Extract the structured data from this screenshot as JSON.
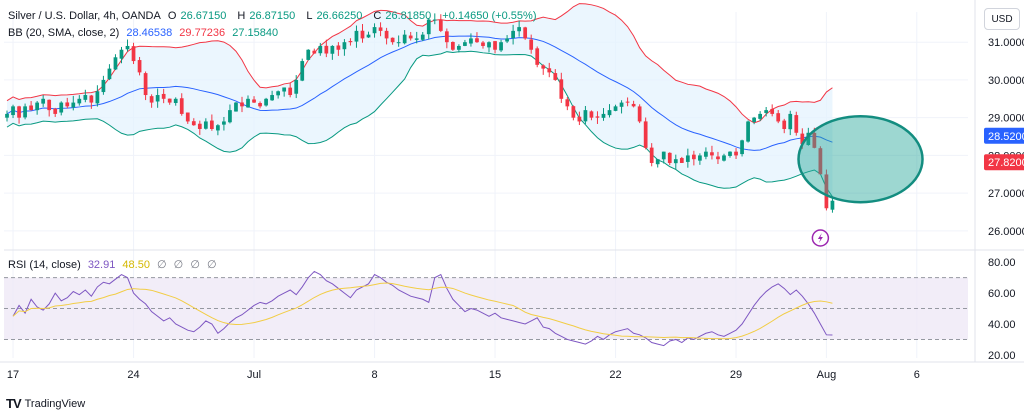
{
  "header": {
    "symbol": "Silver / U.S. Dollar, 4h, OANDA",
    "open_label": "O",
    "open": "26.67150",
    "high_label": "H",
    "high": "26.87150",
    "low_label": "L",
    "low": "26.66250",
    "close_label": "C",
    "close": "26.81850",
    "change": "+0.14650 (+0.55%)",
    "bb_label": "BB (20, SMA, close, 2)",
    "bb_basis": "28.46538",
    "bb_upper": "29.77236",
    "bb_lower": "27.15840",
    "rsi_label": "RSI (14, close)",
    "rsi_value": "32.91",
    "rsi_ma_value": "48.50",
    "rsi_extra": [
      "∅",
      "∅",
      "∅",
      "∅"
    ],
    "currency": "USD"
  },
  "footer": {
    "brand": "TradingView"
  },
  "colors": {
    "up": "#089981",
    "down": "#f23645",
    "basis": "#2962ff",
    "upper": "#f23645",
    "lower": "#089981",
    "band_fill": "#e3f2fd",
    "rsi": "#7e57c2",
    "rsi_ma": "#f2cd45",
    "rsi_band": "#ede7f6",
    "annotation": "#26a69a"
  },
  "chart_data": [
    {
      "type": "candlestick",
      "title": "Silver / U.S. Dollar, 4h, OANDA",
      "ylim": [
        25.6,
        31.8
      ],
      "price_ticks": [
        "31.0000",
        "30.0000",
        "29.0000",
        "28.0000",
        "27.0000",
        "26.0000"
      ],
      "price_tick_values": [
        31,
        30,
        29,
        28,
        27,
        26
      ],
      "price_labels": [
        {
          "text": "28.5200",
          "value": 28.52,
          "color": "#2962ff"
        },
        {
          "text": "27.8200",
          "value": 27.82,
          "color": "#f23645"
        }
      ],
      "x_labels": [
        "17",
        "24",
        "Jul",
        "8",
        "15",
        "22",
        "29",
        "Aug",
        "6"
      ],
      "x_label_bar_index": [
        1,
        21,
        41,
        61,
        81,
        101,
        121,
        136,
        151
      ],
      "close_series": [
        29.1,
        29.3,
        29.0,
        29.3,
        29.2,
        29.4,
        29.5,
        29.2,
        29.1,
        29.4,
        29.3,
        29.4,
        29.5,
        29.6,
        29.4,
        29.7,
        30.0,
        30.3,
        30.6,
        30.8,
        30.9,
        30.5,
        30.2,
        29.6,
        29.4,
        29.6,
        29.5,
        29.4,
        29.5,
        29.1,
        28.9,
        28.8,
        28.7,
        28.9,
        28.7,
        28.8,
        28.9,
        29.2,
        29.4,
        29.3,
        29.5,
        29.4,
        29.3,
        29.5,
        29.6,
        29.7,
        29.8,
        29.6,
        30.0,
        30.5,
        30.8,
        30.7,
        30.9,
        30.7,
        30.9,
        30.8,
        31.0,
        31.0,
        31.3,
        31.1,
        31.2,
        31.4,
        31.3,
        31.1,
        31.0,
        31.0,
        31.2,
        31.1,
        31.1,
        31.2,
        31.6,
        31.6,
        31.3,
        31.0,
        30.8,
        30.9,
        31.0,
        31.1,
        31.0,
        30.9,
        31.0,
        30.8,
        31.0,
        31.1,
        31.3,
        31.4,
        31.1,
        30.8,
        30.4,
        30.3,
        30.2,
        30.0,
        29.5,
        29.3,
        29.0,
        28.9,
        29.2,
        29.0,
        29.0,
        29.1,
        29.2,
        29.3,
        29.4,
        29.4,
        29.3,
        28.9,
        28.2,
        27.8,
        27.9,
        28.1,
        27.8,
        27.9,
        27.8,
        28.0,
        27.9,
        28.0,
        28.1,
        28.0,
        27.9,
        28.0,
        28.1,
        28.0,
        28.4,
        28.9,
        29.0,
        29.1,
        29.2,
        29.1,
        28.9,
        28.7,
        29.1,
        28.6,
        28.3,
        28.6,
        28.2,
        27.5,
        26.6,
        26.8
      ],
      "volatility": 0.18,
      "bollinger": {
        "period": 20,
        "multiplier": 2,
        "last_basis": 28.46538,
        "last_upper": 29.77236,
        "last_lower": 27.1584
      },
      "annotation": {
        "type": "ellipse",
        "target_bar_index": 140,
        "target_price": 27.9
      }
    },
    {
      "type": "line",
      "title": "RSI (14, close)",
      "ylim": [
        18,
        84
      ],
      "ticks": [
        "80.00",
        "60.00",
        "40.00",
        "20.00"
      ],
      "tick_values": [
        80,
        60,
        40,
        20
      ],
      "band": [
        30,
        70
      ],
      "midline": 50,
      "rsi_series": [
        45,
        52,
        47,
        56,
        51,
        49,
        53,
        60,
        55,
        57,
        61,
        59,
        62,
        58,
        64,
        67,
        66,
        69,
        72,
        70,
        60,
        56,
        53,
        48,
        45,
        42,
        44,
        40,
        38,
        36,
        35,
        38,
        42,
        40,
        34,
        37,
        41,
        44,
        46,
        49,
        52,
        54,
        53,
        55,
        58,
        60,
        62,
        59,
        64,
        70,
        74,
        72,
        68,
        66,
        63,
        60,
        57,
        62,
        64,
        66,
        72,
        70,
        67,
        65,
        62,
        60,
        58,
        57,
        56,
        54,
        70,
        72,
        63,
        56,
        52,
        48,
        50,
        49,
        47,
        45,
        47,
        44,
        43,
        42,
        41,
        40,
        42,
        44,
        38,
        37,
        34,
        32,
        30,
        29,
        28,
        27,
        29,
        32,
        30,
        33,
        35,
        36,
        37,
        34,
        33,
        31,
        28,
        27,
        26,
        29,
        30,
        28,
        31,
        30,
        32,
        34,
        35,
        33,
        32,
        34,
        36,
        40,
        46,
        52,
        57,
        61,
        64,
        66,
        63,
        59,
        62,
        58,
        53,
        47,
        40,
        33,
        32.91
      ],
      "last_rsi": 32.91,
      "last_rsi_ma": 48.5
    }
  ]
}
